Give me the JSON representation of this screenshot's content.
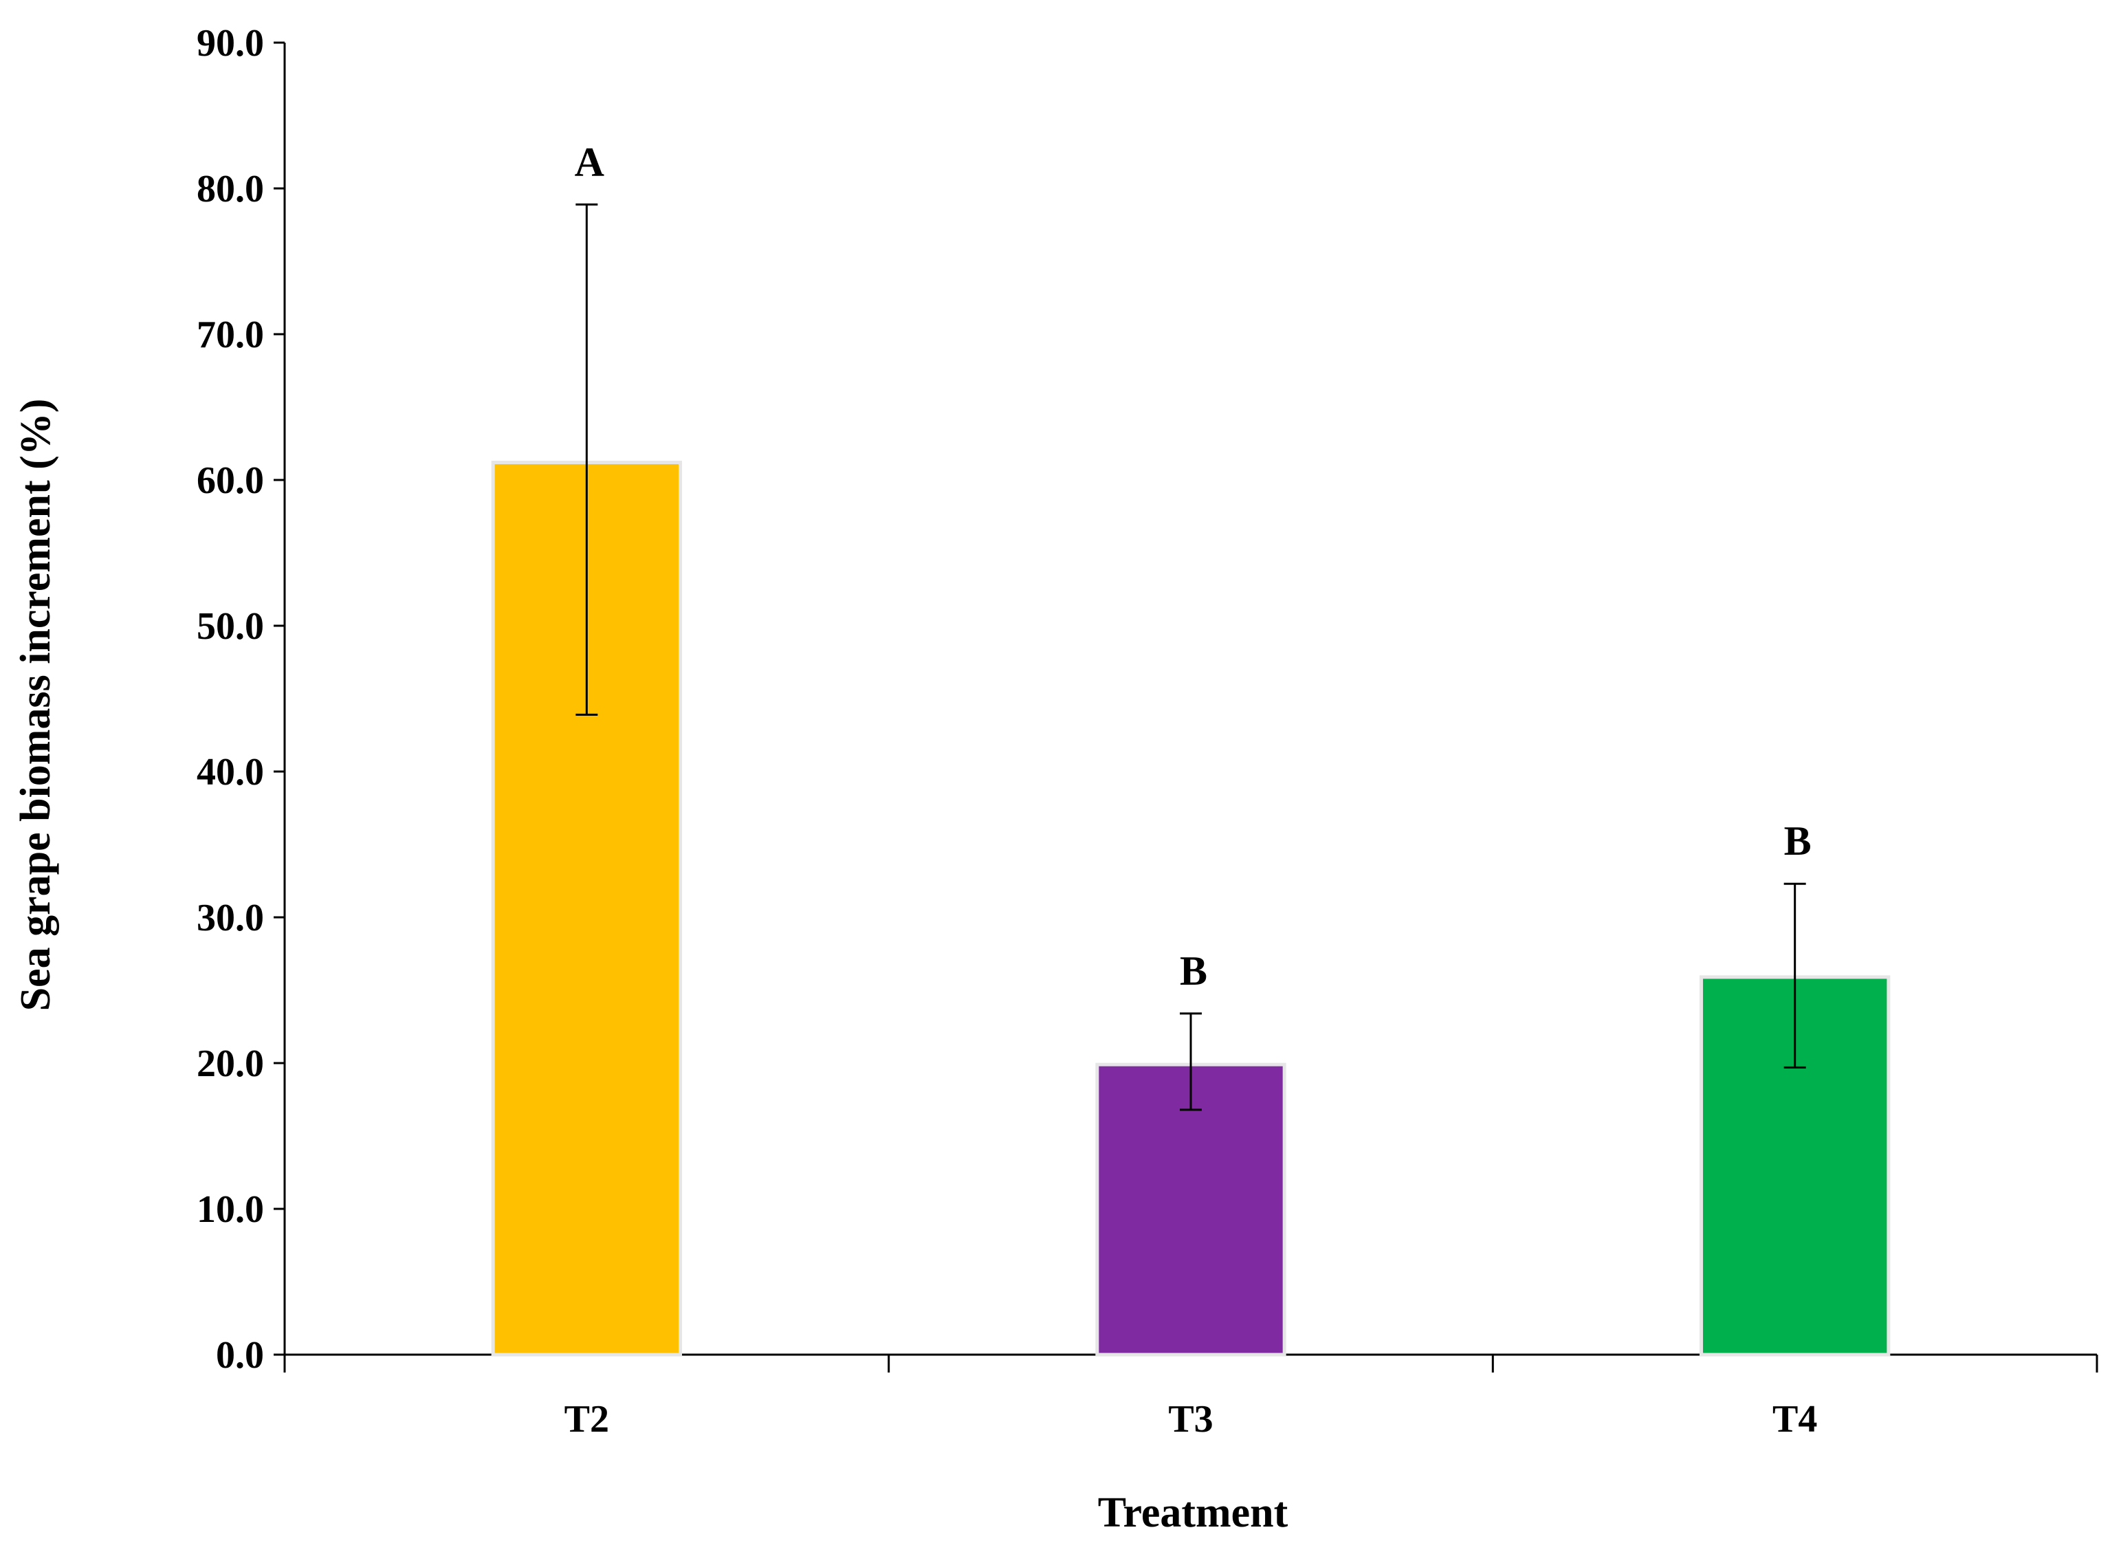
{
  "chart_data": {
    "type": "bar",
    "title": "",
    "xlabel": "Treatment",
    "ylabel": "Sea grape biomass increment (%)",
    "categories": [
      "T2",
      "T3",
      "T4"
    ],
    "values": [
      61.2,
      19.9,
      25.9
    ],
    "error_upper": [
      78.9,
      23.4,
      32.3
    ],
    "error_lower": [
      43.9,
      16.8,
      19.7
    ],
    "significance_labels": [
      "A",
      "B",
      "B"
    ],
    "bar_colors": [
      "#FFC000",
      "#7F2AA0",
      "#00B04C"
    ],
    "ylim": [
      0,
      90
    ],
    "y_ticks": [
      "0.0",
      "10.0",
      "20.0",
      "30.0",
      "40.0",
      "50.0",
      "60.0",
      "70.0",
      "80.0",
      "90.0"
    ],
    "y_tick_values": [
      0,
      10,
      20,
      30,
      40,
      50,
      60,
      70,
      80,
      90
    ],
    "grid": false,
    "legend": "none"
  }
}
